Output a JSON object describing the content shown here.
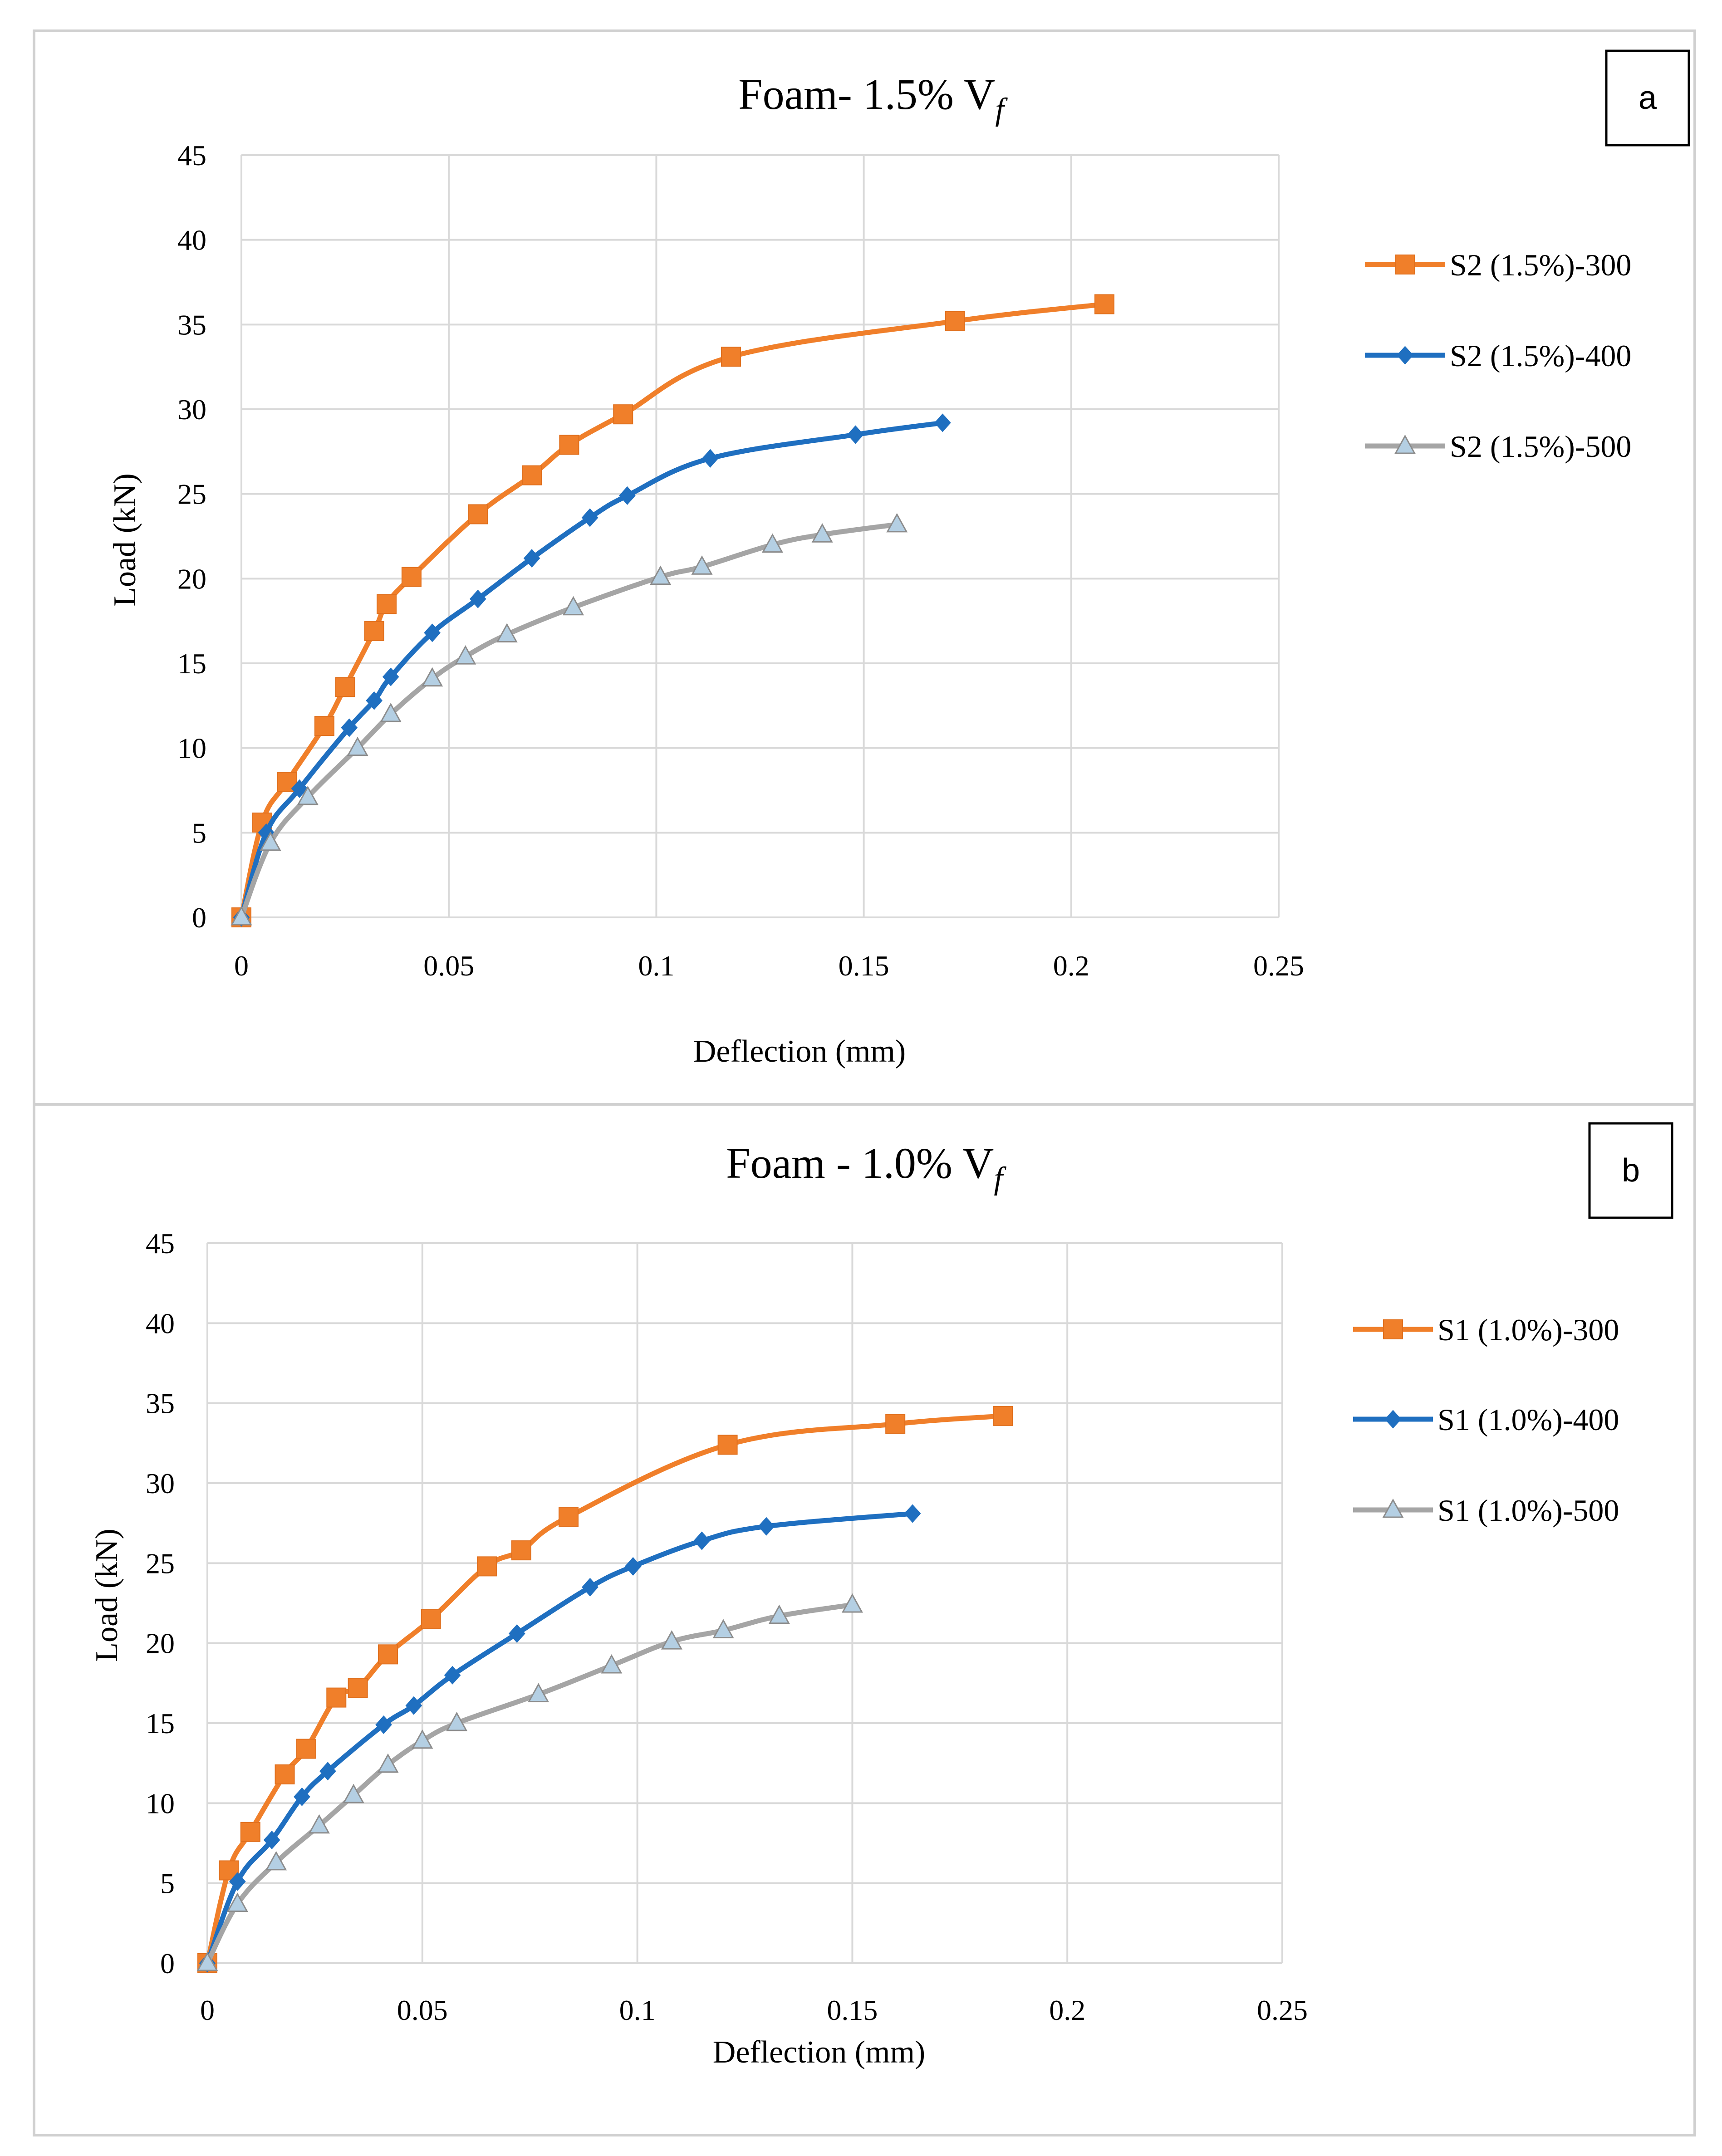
{
  "chart_data": [
    {
      "type": "line",
      "panel_label": "a",
      "title": "Foam- 1.5% V",
      "title_sub": "f",
      "xlabel": "Deflection (mm)",
      "ylabel": "Load (kN)",
      "xlim": [
        0,
        0.25
      ],
      "ylim": [
        0,
        45
      ],
      "xticks": [
        0,
        0.05,
        0.1,
        0.15,
        0.2,
        0.25
      ],
      "xtick_labels": [
        "0",
        "0.05",
        "0.1",
        "0.15",
        "0.2",
        "0.25"
      ],
      "yticks": [
        0,
        5,
        10,
        15,
        20,
        25,
        30,
        35,
        40,
        45
      ],
      "ytick_labels": [
        "0",
        "5",
        "10",
        "15",
        "20",
        "25",
        "30",
        "35",
        "40",
        "45"
      ],
      "grid": true,
      "legend_position": "right",
      "series": [
        {
          "name": "S2 (1.5%)-300",
          "color": "#F07F2A",
          "marker": "square",
          "x": [
            0,
            0.005,
            0.011,
            0.02,
            0.025,
            0.032,
            0.035,
            0.041,
            0.057,
            0.07,
            0.079,
            0.092,
            0.118,
            0.172,
            0.208
          ],
          "y": [
            0,
            5.6,
            8.0,
            11.3,
            13.6,
            16.9,
            18.5,
            20.1,
            23.8,
            26.1,
            27.9,
            29.7,
            33.1,
            35.2,
            36.2
          ]
        },
        {
          "name": "S2 (1.5%)-400",
          "color": "#1F6FC0",
          "marker": "diamond",
          "x": [
            0,
            0.006,
            0.014,
            0.026,
            0.032,
            0.036,
            0.046,
            0.057,
            0.07,
            0.084,
            0.093,
            0.113,
            0.148,
            0.169
          ],
          "y": [
            0,
            5.0,
            7.6,
            11.2,
            12.8,
            14.2,
            16.8,
            18.8,
            21.2,
            23.6,
            24.9,
            27.1,
            28.5,
            29.2
          ]
        },
        {
          "name": "S2 (1.5%)-500",
          "color": "#A5A5A5",
          "marker": "triangle",
          "x": [
            0,
            0.007,
            0.016,
            0.028,
            0.036,
            0.046,
            0.054,
            0.064,
            0.08,
            0.101,
            0.111,
            0.128,
            0.14,
            0.158
          ],
          "y": [
            0,
            4.4,
            7.1,
            10.0,
            12.0,
            14.1,
            15.4,
            16.7,
            18.3,
            20.1,
            20.7,
            22.0,
            22.6,
            23.2
          ]
        }
      ]
    },
    {
      "type": "line",
      "panel_label": "b",
      "title": "Foam - 1.0% V",
      "title_sub": "f",
      "xlabel": "Deflection (mm)",
      "ylabel": "Load (kN)",
      "xlim": [
        0,
        0.25
      ],
      "ylim": [
        0,
        45
      ],
      "xticks": [
        0,
        0.05,
        0.1,
        0.15,
        0.2,
        0.25
      ],
      "xtick_labels": [
        "0",
        "0.05",
        "0.1",
        "0.15",
        "0.2",
        "0.25"
      ],
      "yticks": [
        0,
        5,
        10,
        15,
        20,
        25,
        30,
        35,
        40,
        45
      ],
      "ytick_labels": [
        "0",
        "5",
        "10",
        "15",
        "20",
        "25",
        "30",
        "35",
        "40",
        "45"
      ],
      "grid": true,
      "legend_position": "right",
      "series": [
        {
          "name": "S1 (1.0%)-300",
          "color": "#F07F2A",
          "marker": "square",
          "x": [
            0,
            0.005,
            0.01,
            0.018,
            0.023,
            0.03,
            0.035,
            0.042,
            0.052,
            0.065,
            0.073,
            0.084,
            0.121,
            0.16,
            0.185
          ],
          "y": [
            0,
            5.8,
            8.2,
            11.8,
            13.4,
            16.6,
            17.2,
            19.3,
            21.5,
            24.8,
            25.8,
            27.9,
            32.4,
            33.7,
            34.2
          ]
        },
        {
          "name": "S1 (1.0%)-400",
          "color": "#1F6FC0",
          "marker": "diamond",
          "x": [
            0,
            0.007,
            0.015,
            0.022,
            0.028,
            0.041,
            0.048,
            0.057,
            0.072,
            0.089,
            0.099,
            0.115,
            0.13,
            0.164
          ],
          "y": [
            0,
            5.1,
            7.7,
            10.4,
            12.0,
            14.9,
            16.1,
            18.0,
            20.6,
            23.5,
            24.8,
            26.4,
            27.3,
            28.1
          ]
        },
        {
          "name": "S1 (1.0%)-500",
          "color": "#A5A5A5",
          "marker": "triangle",
          "x": [
            0,
            0.007,
            0.016,
            0.026,
            0.034,
            0.042,
            0.05,
            0.058,
            0.077,
            0.094,
            0.108,
            0.12,
            0.133,
            0.15
          ],
          "y": [
            0,
            3.7,
            6.3,
            8.6,
            10.5,
            12.4,
            13.9,
            15.0,
            16.8,
            18.6,
            20.1,
            20.8,
            21.7,
            22.4
          ]
        }
      ]
    }
  ]
}
